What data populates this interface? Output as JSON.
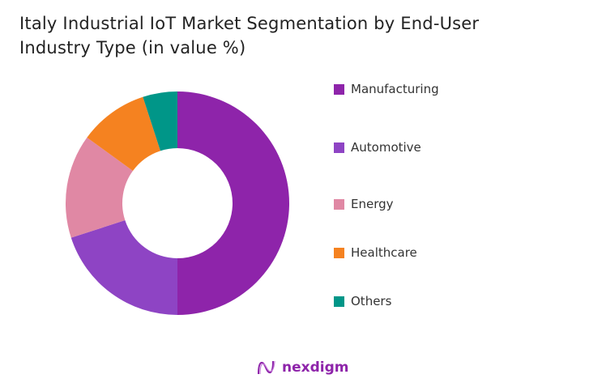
{
  "chart_data": {
    "type": "pie",
    "title": "Italy Industrial IoT Market Segmentation by End-User Industry Type (in value %)",
    "donut": true,
    "legend_position": "right",
    "categories": [
      "Manufacturing",
      "Automotive",
      "Energy",
      "Healthcare",
      "Others"
    ],
    "values": [
      50,
      20,
      15,
      10,
      5
    ],
    "colors": [
      "#8e24aa",
      "#8e44c4",
      "#e088a4",
      "#f58220",
      "#009688"
    ]
  },
  "logo": {
    "text": "nexdigm"
  }
}
